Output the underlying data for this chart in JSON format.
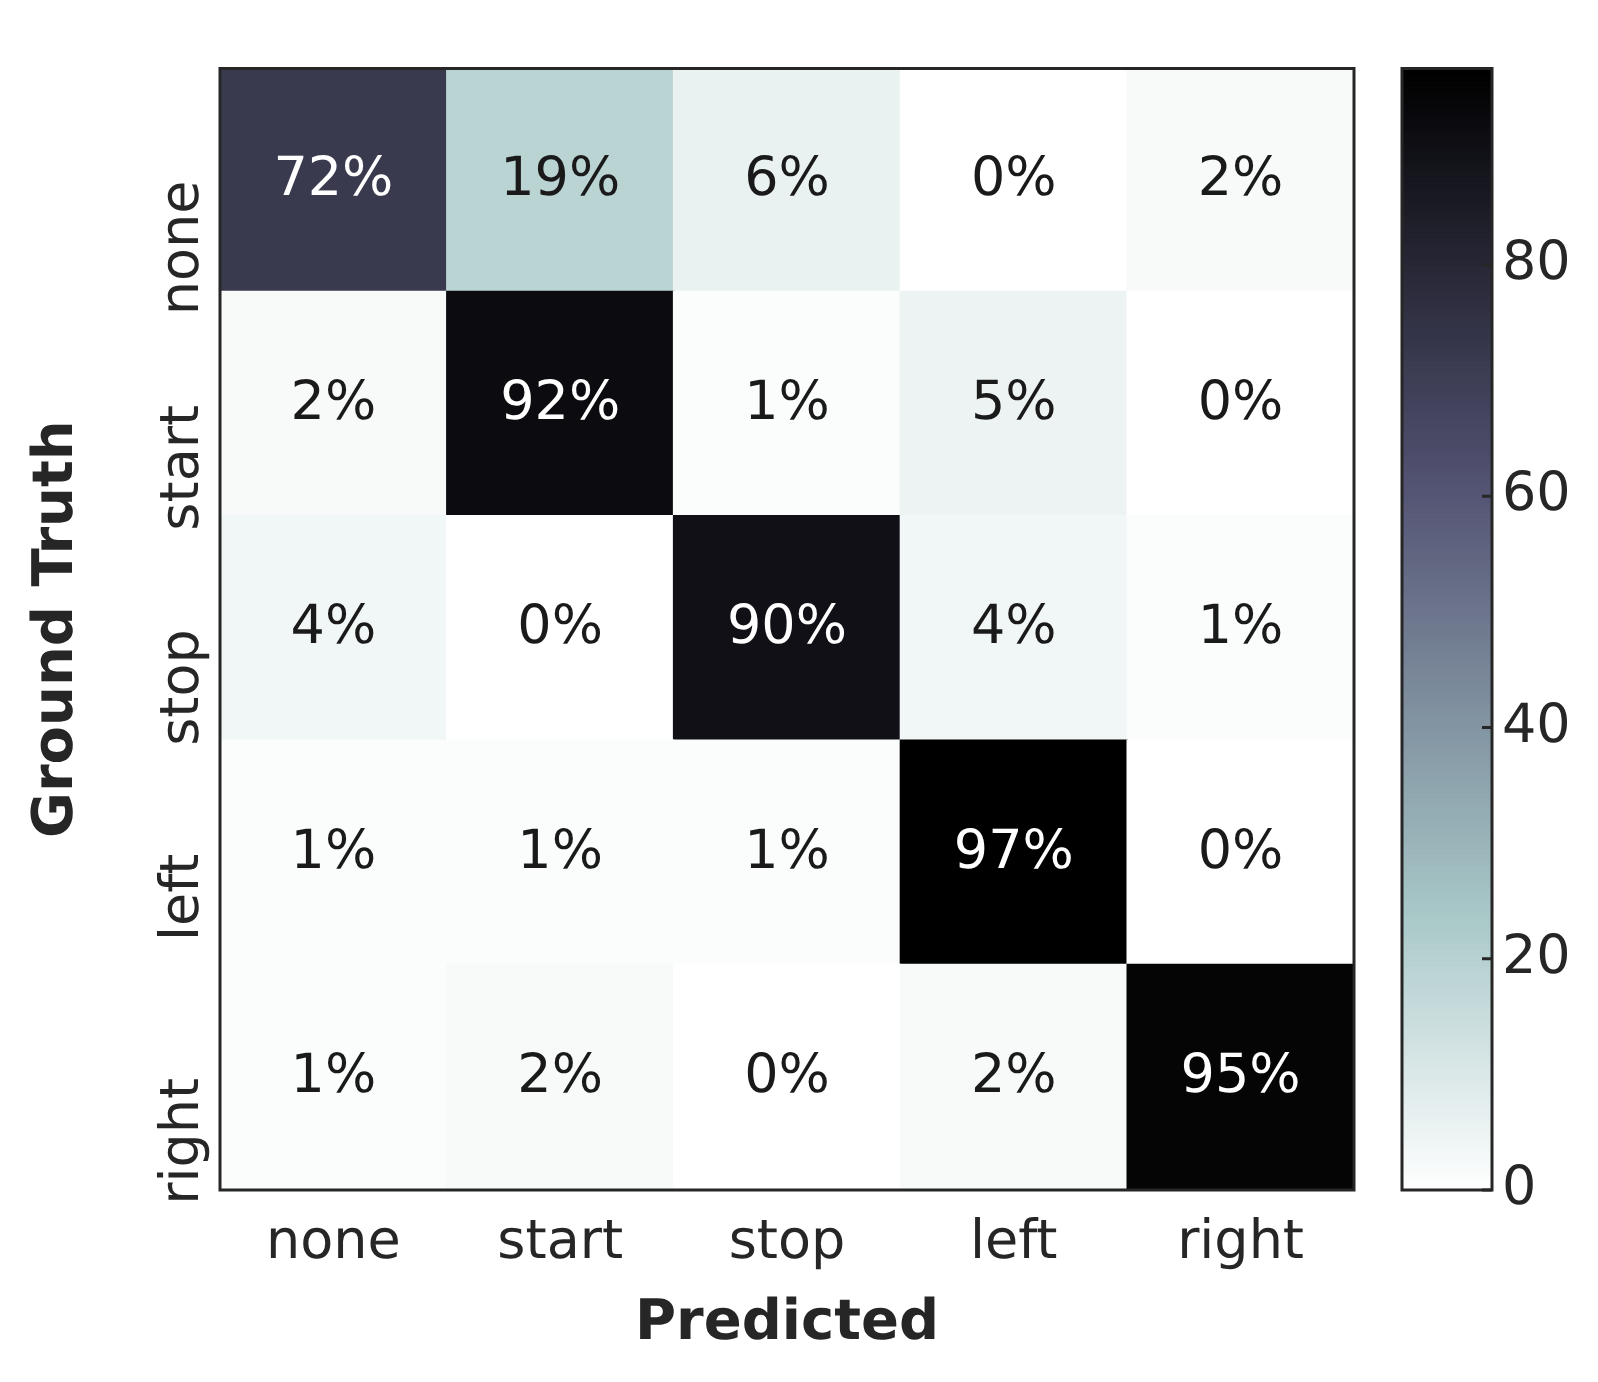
{
  "chart_data": {
    "type": "heatmap",
    "xlabel": "Predicted",
    "ylabel": "Ground Truth",
    "categories": [
      "none",
      "start",
      "stop",
      "left",
      "right"
    ],
    "y_categories": [
      "none",
      "start",
      "stop",
      "left",
      "right"
    ],
    "cells": [
      [
        72,
        19,
        6,
        0,
        2
      ],
      [
        2,
        92,
        1,
        5,
        0
      ],
      [
        4,
        0,
        90,
        4,
        1
      ],
      [
        1,
        1,
        1,
        97,
        0
      ],
      [
        1,
        2,
        0,
        2,
        95
      ]
    ],
    "cell_labels": [
      [
        "72%",
        "19%",
        "6%",
        "0%",
        "2%"
      ],
      [
        "2%",
        "92%",
        "1%",
        "5%",
        "0%"
      ],
      [
        "4%",
        "0%",
        "90%",
        "4%",
        "1%"
      ],
      [
        "1%",
        "1%",
        "1%",
        "97%",
        "0%"
      ],
      [
        "1%",
        "2%",
        "0%",
        "2%",
        "95%"
      ]
    ],
    "clim": [
      0,
      97
    ],
    "cticks": [
      0,
      20,
      40,
      60,
      80
    ]
  }
}
